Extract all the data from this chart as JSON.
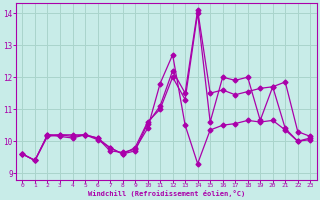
{
  "xlabel": "Windchill (Refroidissement éolien,°C)",
  "bg_color": "#c8ece8",
  "line_color": "#aa00aa",
  "grid_color": "#aad4cc",
  "xlim": [
    -0.5,
    23.5
  ],
  "ylim": [
    8.8,
    14.3
  ],
  "yticks": [
    9,
    10,
    11,
    12,
    13,
    14
  ],
  "xticks": [
    0,
    1,
    2,
    3,
    4,
    5,
    6,
    7,
    8,
    9,
    10,
    11,
    12,
    13,
    14,
    15,
    16,
    17,
    18,
    19,
    20,
    21,
    22,
    23
  ],
  "line1_x": [
    0,
    1,
    2,
    3,
    4,
    5,
    6,
    7,
    8,
    9,
    10,
    11,
    12,
    13,
    14,
    15,
    16,
    17,
    18,
    19,
    20,
    21,
    22,
    23
  ],
  "line1_y": [
    9.6,
    9.4,
    10.2,
    10.15,
    10.1,
    10.2,
    10.1,
    9.7,
    9.65,
    9.75,
    10.4,
    11.8,
    12.7,
    10.5,
    9.3,
    10.35,
    10.5,
    10.55,
    10.65,
    10.6,
    10.65,
    10.35,
    10.0,
    10.05
  ],
  "line2_x": [
    0,
    1,
    2,
    3,
    4,
    5,
    6,
    7,
    8,
    9,
    10,
    11,
    12,
    13,
    14,
    15,
    16,
    17,
    18,
    19,
    20,
    21,
    22,
    23
  ],
  "line2_y": [
    9.6,
    9.4,
    10.15,
    10.2,
    10.15,
    10.2,
    10.05,
    9.8,
    9.6,
    9.7,
    10.55,
    11.1,
    12.2,
    11.5,
    14.1,
    11.5,
    11.6,
    11.45,
    11.55,
    11.65,
    11.7,
    11.85,
    10.3,
    10.15
  ],
  "line3_x": [
    0,
    1,
    2,
    3,
    4,
    5,
    6,
    7,
    8,
    9,
    10,
    11,
    12,
    13,
    14,
    15,
    16,
    17,
    18,
    19,
    20,
    21,
    22,
    23
  ],
  "line3_y": [
    9.6,
    9.4,
    10.2,
    10.2,
    10.2,
    10.2,
    10.1,
    9.8,
    9.6,
    9.8,
    10.6,
    11.0,
    12.0,
    11.3,
    14.0,
    10.6,
    12.0,
    11.9,
    12.0,
    10.65,
    11.7,
    10.4,
    10.0,
    10.1
  ]
}
